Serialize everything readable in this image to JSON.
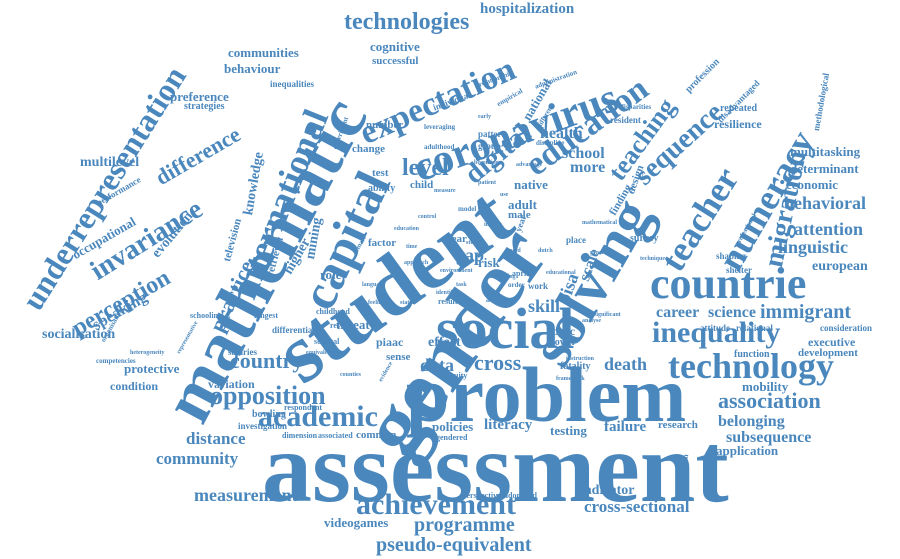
{
  "accent_color": "#4a87bd",
  "words": {
    "assessment": "assessment",
    "problem": "problem",
    "gender": "gender",
    "student": "student",
    "mathematic": "mathematic",
    "solving": "solving",
    "social": "social",
    "countrie": "countrie",
    "capital": "capital",
    "coronavirus": "coronavirus",
    "expectation": "expectation",
    "education": "education",
    "international": "international",
    "teacher": "teacher",
    "numeracy": "numeracy",
    "technology": "technology",
    "inequality": "inequality",
    "achievement": "achievement",
    "academic": "academic",
    "opposition": "opposition",
    "underrepresentation": "underrepresentation",
    "technologies": "technologies",
    "hospitalization": "hospitalization",
    "migration": "migration",
    "sequence": "sequence",
    "teaching": "teaching",
    "digital": "digital",
    "invariance": "invariance",
    "perception": "perception",
    "difference": "difference",
    "practice": "practice",
    "country": "country",
    "association": "association",
    "immigrant": "immigrant",
    "behavioral": "behavioral",
    "attention": "attention",
    "linguistic": "linguistic",
    "european": "european",
    "career": "career",
    "science": "science",
    "belonging": "belonging",
    "subsequence": "subsequence",
    "application": "application",
    "cross_sectional": "cross-sectional",
    "pseudo_equivalent": "pseudo-equivalent",
    "programme": "programme",
    "measurement": "measurement",
    "videogames": "videogames",
    "community": "community",
    "distance": "distance",
    "variation": "variation",
    "protective": "protective",
    "condition": "condition",
    "socialisation": "socialisation",
    "speaking": "speaking",
    "multilevel": "multilevel",
    "preference": "preference",
    "communities": "communities",
    "behaviour": "behaviour",
    "cognitive": "cognitive",
    "successful": "successful",
    "inequalities": "inequalities",
    "strategies": "strategies",
    "occupational": "occupational",
    "evolution": "evolution",
    "performance": "performance",
    "level": "level",
    "school": "school",
    "more": "more",
    "health": "health",
    "native": "native",
    "adult": "adult",
    "male": "male",
    "pisa": "pisa",
    "scale": "scale",
    "skill": "skill",
    "proc": "proc",
    "gap": "gap",
    "risk": "risk",
    "data": "data",
    "cross": "cross",
    "death": "death",
    "literacy": "literacy",
    "testing": "testing",
    "failure": "failure",
    "research": "research",
    "policies": "policies",
    "indicator": "indicator",
    "effect": "effect",
    "threat": "threat",
    "role": "role",
    "higher": "higher",
    "knowledge": "knowledge",
    "mining": "mining",
    "television": "television",
    "retrieval": "retrieval",
    "number": "number",
    "change": "change",
    "test": "test",
    "child": "child",
    "ability": "ability",
    "factor": "factor",
    "multitasking": "multitasking",
    "determinant": "determinant",
    "economic": "economic",
    "mobility": "mobility",
    "executive": "executive",
    "development": "development",
    "consideration": "consideration",
    "function": "function",
    "resilience": "resilience",
    "repeated": "repeated",
    "disadvantaged": "disadvantaged",
    "methodological": "methodological",
    "profession": "profession",
    "survey": "survey",
    "shaping": "shaping",
    "shelter": "shelter",
    "design": "design",
    "finding": "finding",
    "national": "national",
    "individual": "individual",
    "pattern": "pattern",
    "group": "group",
    "resident": "resident",
    "bowling": "bowling",
    "investigation": "investigation",
    "respondent": "respondent",
    "salaries": "salaries",
    "differential": "differential",
    "sense": "sense",
    "common": "common",
    "gendered": "gendered",
    "lower": "lower",
    "fatality": "fatality",
    "population": "population",
    "randomized": "randomized",
    "perspective": "perspective",
    "piaac": "piaac",
    "review": "review",
    "schooling": "schooling",
    "fear": "fear",
    "place": "place",
    "work": "work",
    "april": "april",
    "year": "year",
    "relational": "relational",
    "attitude": "attitude",
    "dimension": "dimension",
    "associated": "associated",
    "equity": "equity",
    "societal": "societal",
    "childhood": "childhood",
    "longest": "longest",
    "competencies": "competencies",
    "action": "action",
    "result": "result",
    "experiment": "experiment",
    "leveraging": "leveraging",
    "adulthood": "adulthood",
    "empirical": "empirical",
    "administration": "administration",
    "relationship": "relationship",
    "disparities": "disparities",
    "different": "different",
    "discipline": "discipline",
    "female": "female",
    "order": "order",
    "model": "model",
    "significant": "significant",
    "framework": "framework",
    "instruction": "instruction",
    "professional": "professional",
    "organisation": "organisation",
    "representative": "representative",
    "heterogeneity": "heterogeneity",
    "equivalence": "equivalence",
    "counties": "counties",
    "evidence": "evidence",
    "identify": "identify",
    "status": "status",
    "feeling": "feeling",
    "language": "language",
    "reading": "reading",
    "becoming": "becoming",
    "advantage": "advantage",
    "technique": "technique",
    "greater": "greater",
    "mathematical": "mathematical",
    "approach": "approach",
    "analyse": "analyse",
    "dutch": "dutch",
    "control": "control",
    "educational": "educational",
    "education_small": "education",
    "early": "early",
    "based": "based",
    "environment": "environment",
    "patient": "patient",
    "impact": "impact",
    "measure": "measure",
    "study": "study",
    "use": "use",
    "task": "task",
    "time": "time"
  }
}
